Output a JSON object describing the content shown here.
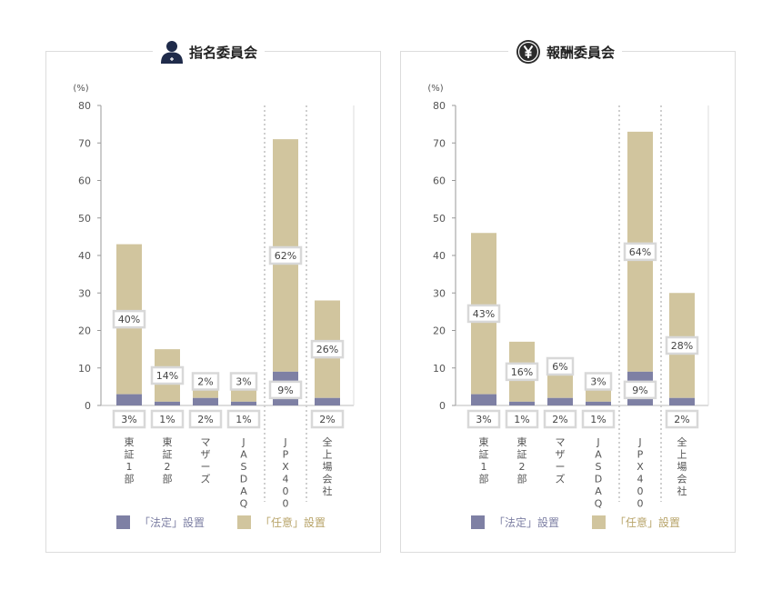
{
  "colors": {
    "statutory": "#7e80a4",
    "voluntary": "#d1c59e",
    "grid": "#d4d4d4",
    "label_box": "#d8d8d8"
  },
  "panels": [
    {
      "title": "指名委員会",
      "icon": "person-icon"
    },
    {
      "title": "報酬委員会",
      "icon": "yen-icon"
    }
  ],
  "legend": {
    "statutory": "「法定」設置",
    "voluntary": "「任意」設置"
  },
  "chart_data": [
    {
      "type": "bar",
      "title": "指名委員会",
      "ylabel": "(%)",
      "ylim": [
        0,
        80
      ],
      "yticks": [
        "0",
        "10",
        "20",
        "30",
        "40",
        "50",
        "60",
        "70",
        "80"
      ],
      "categories": [
        "東証1部",
        "東証2部",
        "マザーズ",
        "JASDAQ",
        "JPX400",
        "全上場会社"
      ],
      "series": [
        {
          "name": "「法定」設置",
          "values": [
            3,
            1,
            2,
            1,
            9,
            2
          ],
          "labels": [
            "3%",
            "1%",
            "2%",
            "1%",
            "9%",
            "2%"
          ]
        },
        {
          "name": "「任意」設置",
          "values": [
            40,
            14,
            2,
            3,
            62,
            26
          ],
          "labels": [
            "40%",
            "14%",
            "2%",
            "3%",
            "62%",
            "26%"
          ]
        }
      ],
      "stacked": true
    },
    {
      "type": "bar",
      "title": "報酬委員会",
      "ylabel": "(%)",
      "ylim": [
        0,
        80
      ],
      "yticks": [
        "0",
        "10",
        "20",
        "30",
        "40",
        "50",
        "60",
        "70",
        "80"
      ],
      "categories": [
        "東証1部",
        "東証2部",
        "マザーズ",
        "JASDAQ",
        "JPX400",
        "全上場会社"
      ],
      "series": [
        {
          "name": "「法定」設置",
          "values": [
            3,
            1,
            2,
            1,
            9,
            2
          ],
          "labels": [
            "3%",
            "1%",
            "2%",
            "1%",
            "9%",
            "2%"
          ]
        },
        {
          "name": "「任意」設置",
          "values": [
            43,
            16,
            6,
            3,
            64,
            28
          ],
          "labels": [
            "43%",
            "16%",
            "6%",
            "3%",
            "64%",
            "28%"
          ]
        }
      ],
      "stacked": true
    }
  ]
}
